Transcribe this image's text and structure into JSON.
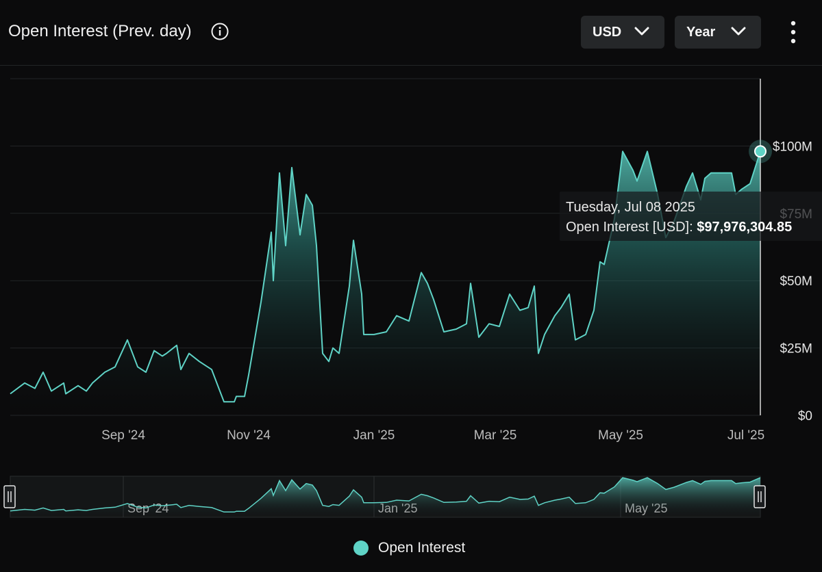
{
  "header": {
    "title": "Open Interest (Prev. day)",
    "currency_selector": "USD",
    "range_selector": "Year"
  },
  "colors": {
    "background": "#0b0b0c",
    "series": "#5fd3c6",
    "grid": "#232527",
    "button": "#252729"
  },
  "icons": [
    "info-icon",
    "chevron-down-icon",
    "more-vertical-icon"
  ],
  "tooltip": {
    "date": "Tuesday, Jul 08 2025",
    "series_label": "Open Interest [USD]",
    "value": "$97,976,304.85"
  },
  "legend": {
    "label": "Open Interest"
  },
  "navigator": {
    "labels": [
      "Sep '24",
      "Jan '25",
      "May '25"
    ]
  },
  "chart_data": {
    "type": "area",
    "title": "Open Interest (Prev. day)",
    "y_unit": "USD",
    "y_ticks": [
      "$0",
      "$25M",
      "$50M",
      "$75M",
      "$100M"
    ],
    "x_ticks": [
      "Sep '24",
      "Nov '24",
      "Jan '25",
      "Mar '25",
      "May '25",
      "Jul '25"
    ],
    "ylim": [
      0,
      125000000
    ],
    "xlim": [
      "2024-07-08",
      "2025-07-08"
    ],
    "grid": "horizontal",
    "legend_position": "bottom-center",
    "series": [
      {
        "name": "Open Interest",
        "x": [
          "2024-07-08",
          "2024-07-15",
          "2024-07-20",
          "2024-07-24",
          "2024-07-28",
          "2024-08-03",
          "2024-08-04",
          "2024-08-10",
          "2024-08-14",
          "2024-08-17",
          "2024-08-23",
          "2024-08-28",
          "2024-09-03",
          "2024-09-08",
          "2024-09-12",
          "2024-09-16",
          "2024-09-20",
          "2024-09-22",
          "2024-09-27",
          "2024-09-29",
          "2024-10-03",
          "2024-10-08",
          "2024-10-14",
          "2024-10-20",
          "2024-10-25",
          "2024-10-26",
          "2024-10-30",
          "2024-11-01",
          "2024-11-07",
          "2024-11-12",
          "2024-11-13",
          "2024-11-16",
          "2024-11-19",
          "2024-11-22",
          "2024-11-26",
          "2024-11-29",
          "2024-12-02",
          "2024-12-04",
          "2024-12-07",
          "2024-12-10",
          "2024-12-12",
          "2024-12-15",
          "2024-12-17",
          "2024-12-20",
          "2024-12-22",
          "2024-12-26",
          "2024-12-27",
          "2025-01-01",
          "2025-01-07",
          "2025-01-12",
          "2025-01-18",
          "2025-01-24",
          "2025-01-27",
          "2025-01-30",
          "2025-02-04",
          "2025-02-10",
          "2025-02-15",
          "2025-02-17",
          "2025-02-21",
          "2025-02-26",
          "2025-03-03",
          "2025-03-08",
          "2025-03-13",
          "2025-03-17",
          "2025-03-20",
          "2025-03-22",
          "2025-03-25",
          "2025-03-30",
          "2025-04-02",
          "2025-04-06",
          "2025-04-09",
          "2025-04-14",
          "2025-04-18",
          "2025-04-21",
          "2025-04-23",
          "2025-04-28",
          "2025-05-02",
          "2025-05-07",
          "2025-05-09",
          "2025-05-14",
          "2025-05-19",
          "2025-05-23",
          "2025-05-27",
          "2025-06-02",
          "2025-06-05",
          "2025-06-09",
          "2025-06-11",
          "2025-06-14",
          "2025-06-18",
          "2025-06-21",
          "2025-06-24",
          "2025-06-26",
          "2025-06-29",
          "2025-07-03",
          "2025-07-08"
        ],
        "values": [
          8,
          12,
          10,
          16,
          9,
          12,
          8,
          11,
          9,
          12,
          16,
          18,
          28,
          18,
          16,
          24,
          22,
          23,
          26,
          17,
          23,
          20,
          17,
          5,
          5,
          7,
          7,
          15,
          42,
          68,
          50,
          90,
          63,
          92,
          67,
          82,
          78,
          63,
          23,
          20,
          25,
          23,
          33,
          48,
          65,
          45,
          30,
          30,
          31,
          37,
          35,
          53,
          49,
          43,
          31,
          32,
          34,
          49,
          29,
          34,
          33,
          45,
          39,
          40,
          48,
          23,
          30,
          37,
          40,
          45,
          28,
          30,
          39,
          57,
          56,
          73,
          98,
          91,
          87,
          98,
          82,
          66,
          72,
          85,
          90,
          80,
          88,
          90,
          90,
          90,
          90,
          82,
          84,
          86,
          98
        ]
      }
    ]
  }
}
